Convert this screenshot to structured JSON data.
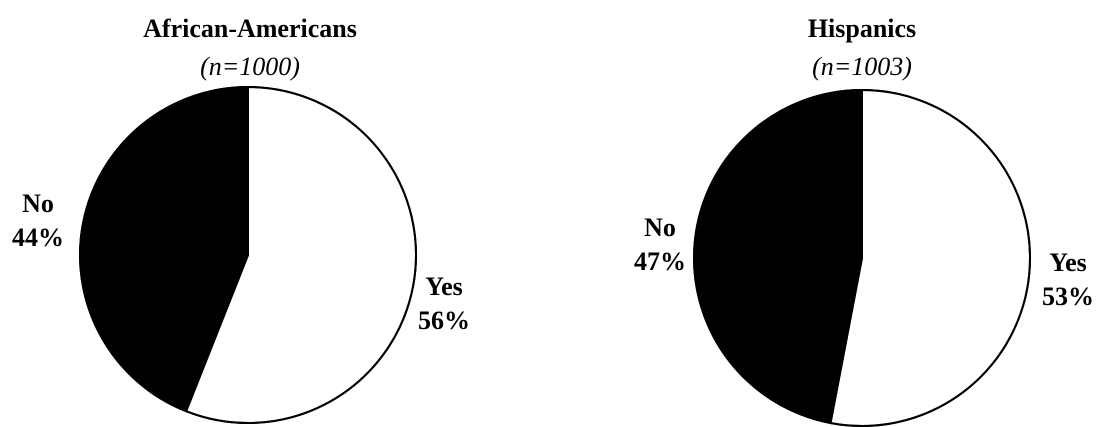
{
  "chart_data": [
    {
      "type": "pie",
      "title": "African-Americans",
      "subtitle": "(n=1000)",
      "categories": [
        "Yes",
        "No"
      ],
      "values": [
        56,
        44
      ],
      "labels": [
        "56%",
        "44%"
      ],
      "colors": [
        "#ffffff",
        "#000000"
      ],
      "start_angle_deg": 0,
      "direction": "clockwise"
    },
    {
      "type": "pie",
      "title": "Hispanics",
      "subtitle": "(n=1003)",
      "categories": [
        "Yes",
        "No"
      ],
      "values": [
        53,
        47
      ],
      "labels": [
        "53%",
        "47%"
      ],
      "colors": [
        "#ffffff",
        "#000000"
      ],
      "start_angle_deg": 0,
      "direction": "clockwise"
    }
  ]
}
